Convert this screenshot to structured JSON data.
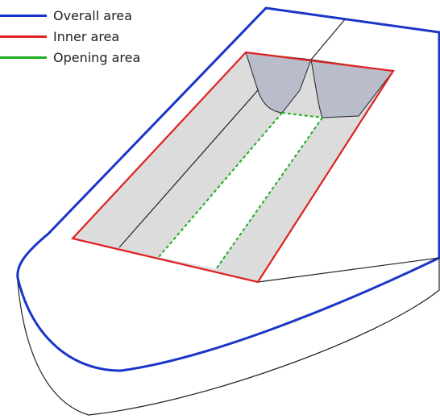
{
  "legend": {
    "items": [
      {
        "label": "Overall area",
        "color": "#1a35c9"
      },
      {
        "label": "Inner area",
        "color": "#e02020"
      },
      {
        "label": "Opening area",
        "color": "#1fae1f"
      }
    ]
  },
  "colors": {
    "hull_outline": "#222222",
    "deck_fill": "#ffffff",
    "inner_floor_fill": "#dcdcdc",
    "end_recess_fill": "#b9bccb",
    "opening_fill": "#ffffff"
  }
}
